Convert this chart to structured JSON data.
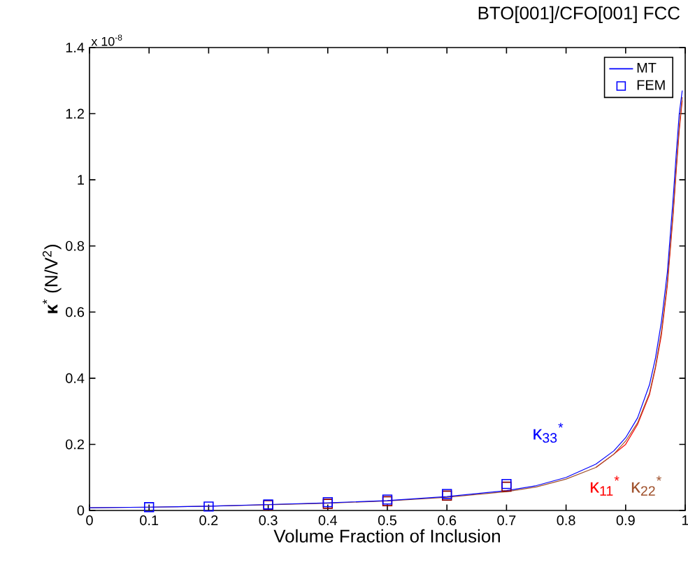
{
  "chart_data": {
    "type": "line",
    "title": "BTO[001]/CFO[001] FCC",
    "xlabel": "Volume Fraction of Inclusion",
    "ylabel": "**κ**$^{*}$ (N/V$^{2}$)",
    "xlim": [
      0,
      1
    ],
    "ylim": [
      0,
      1.4
    ],
    "xticks": [
      0,
      0.1,
      0.2,
      0.3,
      0.4,
      0.5,
      0.6,
      0.7,
      0.8,
      0.9,
      1
    ],
    "yticks": [
      0,
      0.2,
      0.4,
      0.6,
      0.8,
      1,
      1.2,
      1.4
    ],
    "grid": false,
    "legend": "top right",
    "series": [
      {
        "marker": "none",
        "color": "#ff0000",
        "x": [
          0.85,
          0.88,
          0.9,
          0.92,
          0.94,
          0.95,
          0.96,
          0.97,
          0.98,
          0.985,
          0.99,
          0.995
        ],
        "values": [
          0.13,
          0.17,
          0.2,
          0.26,
          0.35,
          0.43,
          0.53,
          0.68,
          0.9,
          1.03,
          1.15,
          1.24
        ]
      },
      {
        "marker": "none",
        "color": "#a0522d",
        "x": [
          0,
          0.1,
          0.2,
          0.3,
          0.4,
          0.5,
          0.6,
          0.7,
          0.75,
          0.8,
          0.85,
          0.88,
          0.9,
          0.92,
          0.94,
          0.95,
          0.96,
          0.97,
          0.98,
          0.985,
          0.99,
          0.995
        ],
        "values": [
          0.008,
          0.01,
          0.013,
          0.017,
          0.022,
          0.029,
          0.04,
          0.057,
          0.071,
          0.095,
          0.13,
          0.17,
          0.21,
          0.265,
          0.355,
          0.435,
          0.54,
          0.69,
          0.91,
          1.04,
          1.16,
          1.25
        ]
      },
      {
        "name": "MT",
        "marker": "none",
        "color": "#0000ff",
        "x": [
          0,
          0.1,
          0.2,
          0.3,
          0.4,
          0.5,
          0.6,
          0.7,
          0.75,
          0.8,
          0.85,
          0.88,
          0.9,
          0.92,
          0.94,
          0.95,
          0.96,
          0.97,
          0.98,
          0.985,
          0.99,
          0.995
        ],
        "values": [
          0.008,
          0.01,
          0.013,
          0.018,
          0.023,
          0.03,
          0.042,
          0.06,
          0.075,
          0.1,
          0.14,
          0.18,
          0.22,
          0.28,
          0.38,
          0.46,
          0.57,
          0.72,
          0.95,
          1.08,
          1.2,
          1.27
        ]
      },
      {
        "type": "scatter",
        "marker": "square",
        "color": "#8b0000",
        "x": [
          0.3,
          0.4,
          0.5,
          0.6,
          0.7
        ],
        "values": [
          0.016,
          0.02,
          0.028,
          0.045,
          0.072
        ]
      },
      {
        "type": "scatter",
        "name": "FEM",
        "marker": "square",
        "color": "#0000ff",
        "x": [
          0.1,
          0.2,
          0.3,
          0.4,
          0.5,
          0.6,
          0.7
        ],
        "values": [
          0.01,
          0.012,
          0.018,
          0.025,
          0.033,
          0.05,
          0.08
        ]
      }
    ],
    "annotations": [
      "x 10$^{-8}$",
      "κ$_{33}$$^{*}$",
      "κ$_{11}$$^{*}$",
      "κ$_{22}$$^{*}$"
    ]
  }
}
